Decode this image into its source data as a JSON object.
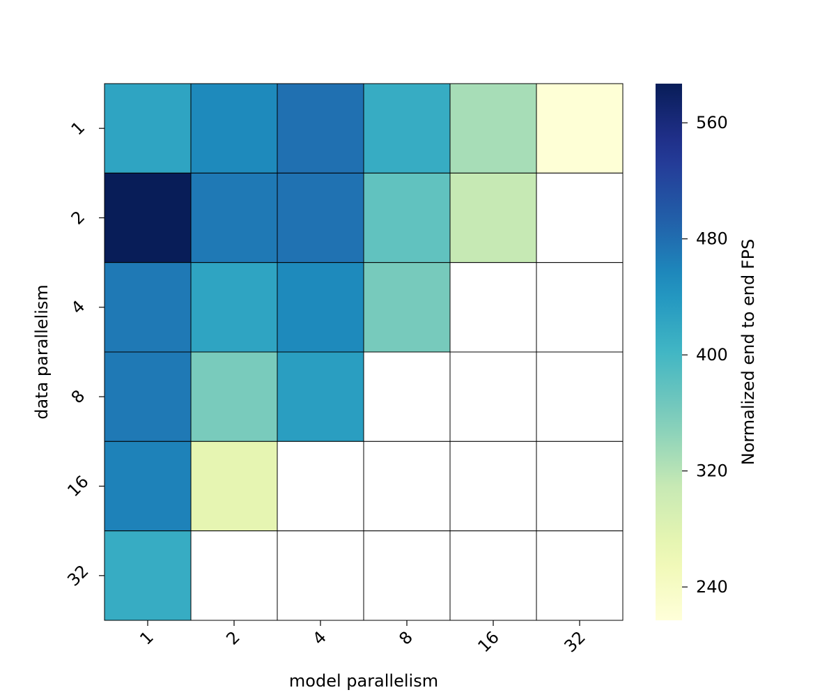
{
  "chart_data": {
    "type": "heatmap",
    "title": "",
    "xlabel": "model parallelism",
    "ylabel": "data parallelism",
    "x_categories": [
      "1",
      "2",
      "4",
      "8",
      "16",
      "32"
    ],
    "y_categories": [
      "1",
      "2",
      "4",
      "8",
      "16",
      "32"
    ],
    "values": [
      [
        425,
        455,
        478,
        415,
        330,
        220
      ],
      [
        592,
        470,
        476,
        378,
        310,
        null
      ],
      [
        470,
        425,
        455,
        362,
        null,
        null
      ],
      [
        470,
        360,
        432,
        null,
        null,
        null
      ],
      [
        462,
        272,
        null,
        null,
        null,
        null
      ],
      [
        415,
        null,
        null,
        null,
        null,
        null
      ]
    ],
    "colorbar": {
      "label": "Normalized end to end FPS",
      "ticks": [
        "240",
        "320",
        "400",
        "480",
        "560"
      ],
      "range": [
        217,
        587
      ],
      "colormap": "YlGnBu"
    },
    "missing_color": "#ffffff",
    "cell_border_color": "#000000",
    "grid": false
  }
}
